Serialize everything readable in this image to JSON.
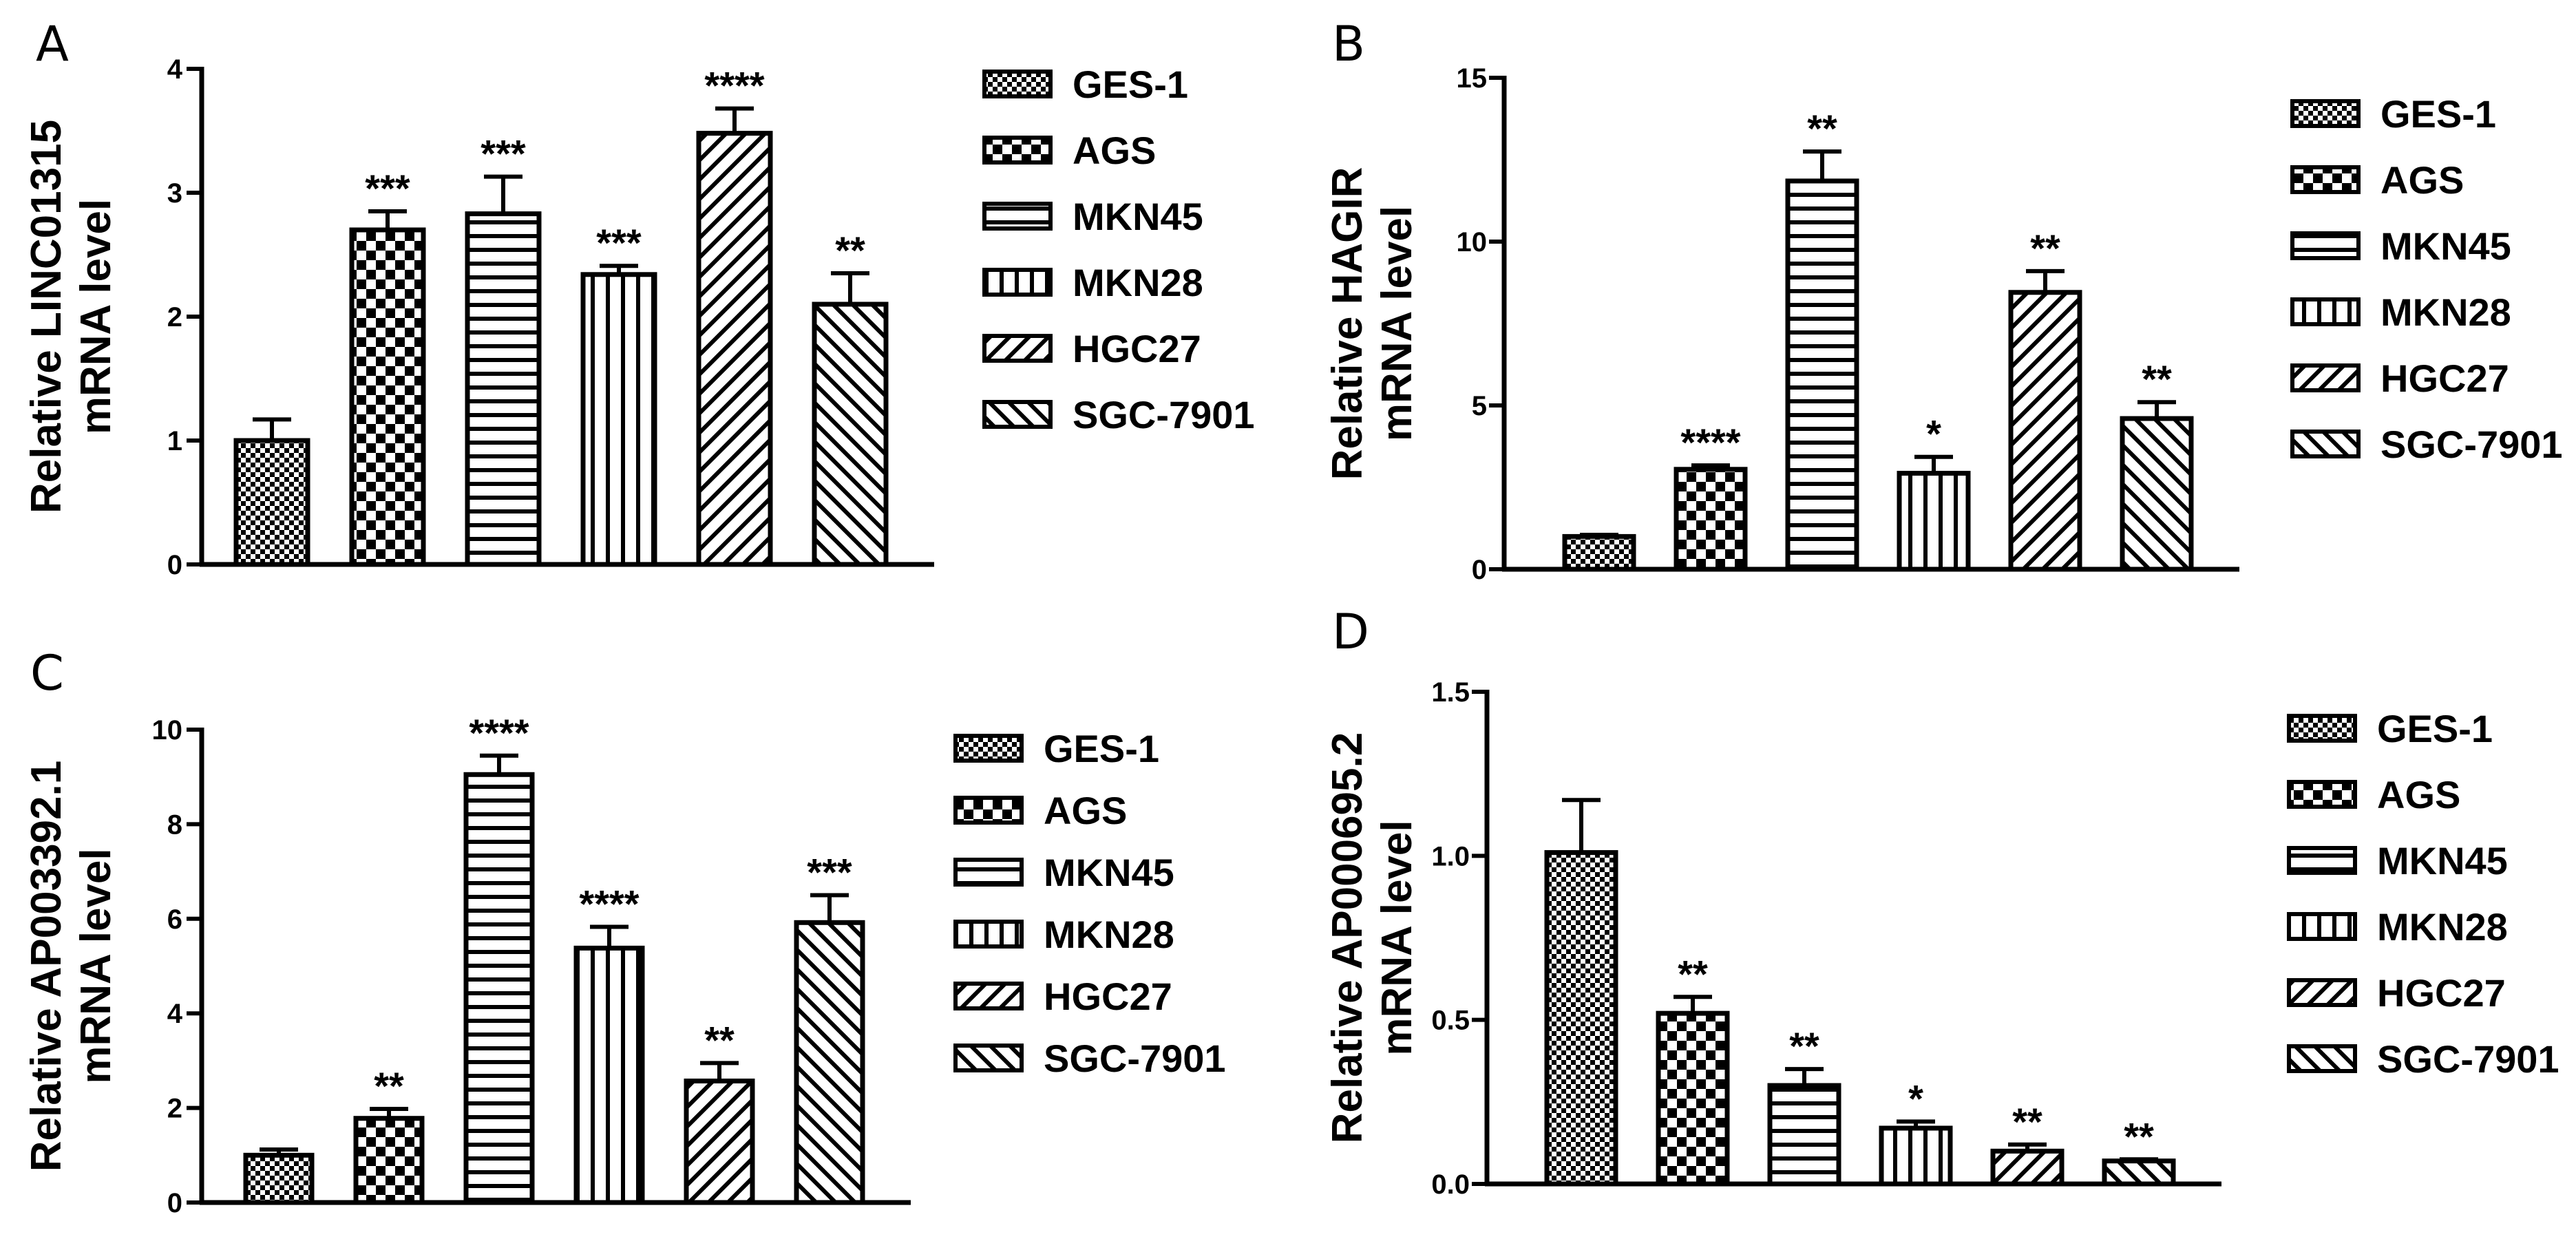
{
  "chart_data": [
    {
      "panel": "A",
      "type": "bar",
      "categories": [
        "GES-1",
        "AGS",
        "MKN45",
        "MKN28",
        "HGC27",
        "SGC-7901"
      ],
      "values": [
        1.0,
        2.7,
        2.83,
        2.34,
        3.48,
        2.1
      ],
      "errors": [
        0.17,
        0.15,
        0.3,
        0.07,
        0.2,
        0.25
      ],
      "significance": [
        "",
        "***",
        "***",
        "***",
        "****",
        "**"
      ],
      "ylabel": [
        "Relative LINC01315",
        "mRNA level"
      ],
      "ylim": [
        0,
        4
      ],
      "yticks": [
        "0",
        "1",
        "2",
        "3",
        "4"
      ],
      "ytick_values": [
        0,
        1,
        2,
        3,
        4
      ],
      "legend": [
        "GES-1",
        "AGS",
        "MKN45",
        "MKN28",
        "HGC27",
        "SGC-7901"
      ]
    },
    {
      "panel": "B",
      "type": "bar",
      "categories": [
        "GES-1",
        "AGS",
        "MKN45",
        "MKN28",
        "HGC27",
        "SGC-7901"
      ],
      "values": [
        1.0,
        3.05,
        11.85,
        2.93,
        8.45,
        4.6
      ],
      "errors": [
        0.05,
        0.12,
        0.9,
        0.5,
        0.65,
        0.5
      ],
      "significance": [
        "",
        "****",
        "**",
        "*",
        "**",
        "**"
      ],
      "ylabel": [
        "Relative HAGIR",
        "mRNA level"
      ],
      "ylim": [
        0,
        15
      ],
      "yticks": [
        "0",
        "5",
        "10",
        "15"
      ],
      "ytick_values": [
        0,
        5,
        10,
        15
      ],
      "legend": [
        "GES-1",
        "AGS",
        "MKN45",
        "MKN28",
        "HGC27",
        "SGC-7901"
      ]
    },
    {
      "panel": "C",
      "type": "bar",
      "categories": [
        "GES-1",
        "AGS",
        "MKN45",
        "MKN28",
        "HGC27",
        "SGC-7901"
      ],
      "values": [
        1.0,
        1.78,
        9.05,
        5.38,
        2.57,
        5.92
      ],
      "errors": [
        0.12,
        0.2,
        0.4,
        0.45,
        0.38,
        0.58
      ],
      "significance": [
        "",
        "**",
        "****",
        "****",
        "**",
        "***"
      ],
      "ylabel": [
        "Relative AP003392.1",
        "mRNA level"
      ],
      "ylim": [
        0,
        10
      ],
      "yticks": [
        "0",
        "2",
        "4",
        "6",
        "8",
        "10"
      ],
      "ytick_values": [
        0,
        2,
        4,
        6,
        8,
        10
      ],
      "legend": [
        "GES-1",
        "AGS",
        "MKN45",
        "MKN28",
        "HGC27",
        "SGC-7901"
      ]
    },
    {
      "panel": "D",
      "type": "bar",
      "categories": [
        "GES-1",
        "AGS",
        "MKN45",
        "MKN28",
        "HGC27",
        "SGC-7901"
      ],
      "values": [
        1.01,
        0.52,
        0.3,
        0.17,
        0.1,
        0.07
      ],
      "errors": [
        0.16,
        0.05,
        0.05,
        0.02,
        0.02,
        0.005
      ],
      "significance": [
        "",
        "**",
        "**",
        "*",
        "**",
        "**"
      ],
      "ylabel": [
        "Relative AP000695.2",
        "mRNA level"
      ],
      "ylim": [
        0,
        1.5
      ],
      "yticks": [
        "0.0",
        "0.5",
        "1.0",
        "1.5"
      ],
      "ytick_values": [
        0,
        0.5,
        1.0,
        1.5
      ],
      "legend": [
        "GES-1",
        "AGS",
        "MKN45",
        "MKN28",
        "HGC27",
        "SGC-7901"
      ]
    }
  ],
  "pattern_names": [
    "dense-checker-icon",
    "checkerboard-icon",
    "horizontal-stripes-icon",
    "vertical-stripes-icon",
    "diagonal-hatch-icon",
    "back-diagonal-hatch-icon"
  ]
}
